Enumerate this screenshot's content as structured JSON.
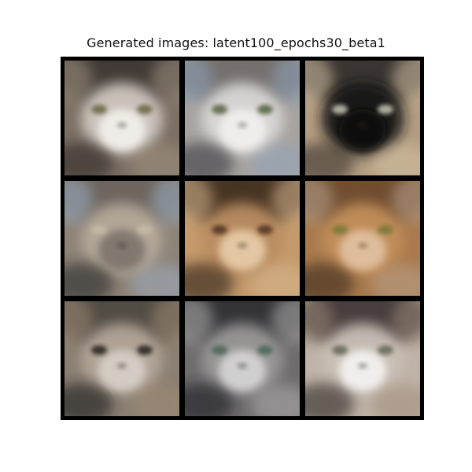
{
  "figure": {
    "title": "Generated images: latent100_epochs30_beta1"
  },
  "grid": {
    "rows": 3,
    "cols": 3,
    "tiles": [
      {
        "id": "r1c1",
        "subject": "blurry-cat-face",
        "palette": {
          "bg": "#7c6f64",
          "top": "#3b3633",
          "face": "#cfc8c0",
          "muzzle": "#f2efea",
          "eye": "#6f6d4b",
          "shadow": "#2d2925",
          "accent": "#a39581"
        }
      },
      {
        "id": "r1c2",
        "subject": "blurry-cat-face",
        "palette": {
          "bg": "#a7a3a0",
          "top": "#6f6b68",
          "face": "#d9d7d6",
          "muzzle": "#f0efee",
          "eye": "#5f6b4c",
          "shadow": "#3a3a3f",
          "accent": "#8ea4bd"
        }
      },
      {
        "id": "r1c3",
        "subject": "blurry-cat-face",
        "palette": {
          "bg": "#b39d82",
          "top": "#2f2b29",
          "face": "#151516",
          "muzzle": "#0c0c0d",
          "eye": "#b9b8a6",
          "shadow": "#3a332d",
          "accent": "#d7c4a5"
        }
      },
      {
        "id": "r2c1",
        "subject": "blurry-cat-face",
        "palette": {
          "bg": "#8d8377",
          "top": "#6a625b",
          "face": "#b5a99a",
          "muzzle": "#7f766d",
          "eye": "#c4b9a5",
          "shadow": "#2b2a2b",
          "accent": "#9db0c4"
        }
      },
      {
        "id": "r2c2",
        "subject": "blurry-cat-face",
        "palette": {
          "bg": "#c49a6b",
          "top": "#3a2a1f",
          "face": "#b98d62",
          "muzzle": "#e6caa6",
          "eye": "#5a3a26",
          "shadow": "#2b1e16",
          "accent": "#d9b992"
        }
      },
      {
        "id": "r2c3",
        "subject": "blurry-cat-face",
        "palette": {
          "bg": "#a87a4e",
          "top": "#6a4a2d",
          "face": "#c28f5a",
          "muzzle": "#e0c0a0",
          "eye": "#7f7a3b",
          "shadow": "#3a2a1f",
          "accent": "#b9a58f"
        }
      },
      {
        "id": "r3c1",
        "subject": "blurry-cat-face",
        "palette": {
          "bg": "#8a7f73",
          "top": "#4c4640",
          "face": "#b3a699",
          "muzzle": "#d6cfc6",
          "eye": "#2f2a26",
          "shadow": "#1f1c1a",
          "accent": "#a08a73"
        }
      },
      {
        "id": "r3c2",
        "subject": "blurry-cat-face",
        "palette": {
          "bg": "#6e6c6d",
          "top": "#2e2e31",
          "face": "#9a9897",
          "muzzle": "#d4d3d4",
          "eye": "#4f6a5c",
          "shadow": "#1e1e21",
          "accent": "#b5b3b2"
        }
      },
      {
        "id": "r3c3",
        "subject": "blurry-cat-face",
        "palette": {
          "bg": "#bfb3a7",
          "top": "#3a3330",
          "face": "#c9bfb6",
          "muzzle": "#f3f1ef",
          "eye": "#6b6d5d",
          "shadow": "#2a2522",
          "accent": "#9c8a78"
        }
      }
    ]
  }
}
